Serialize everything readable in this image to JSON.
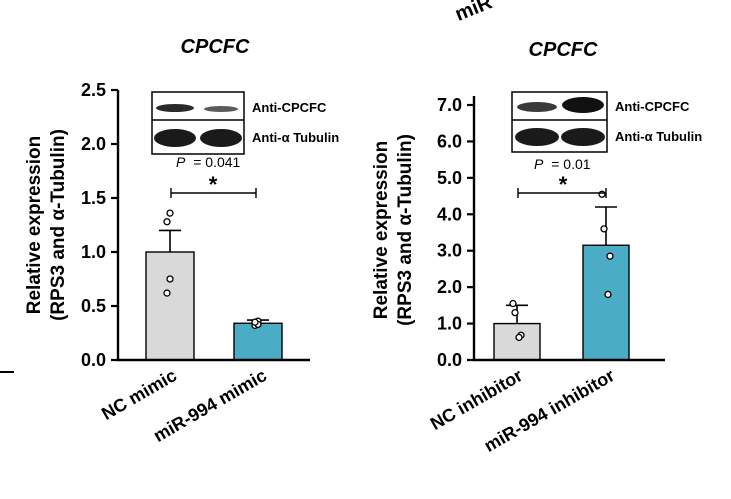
{
  "top_fragment": {
    "text": "miR"
  },
  "chart_data": [
    {
      "type": "bar",
      "title": "CPCFC",
      "ylabel_line1": "Relative expression",
      "ylabel_line2": "(RPS3 and α-Tubulin)",
      "ylim": [
        0,
        2.5
      ],
      "yticks": [
        "0.0",
        "0.5",
        "1.0",
        "1.5",
        "2.0",
        "2.5"
      ],
      "categories": [
        "NC mimic",
        "miR-994 mimic"
      ],
      "values": [
        1.0,
        0.34
      ],
      "errors": [
        0.2,
        0.03
      ],
      "points": [
        [
          1.36,
          1.28,
          0.75,
          0.62
        ],
        [
          0.36,
          0.32,
          0.33,
          0.35
        ]
      ],
      "bar_colors": [
        "#d9d9d9",
        "#4bacc6"
      ],
      "significance": {
        "p_prefix": "P",
        "p_value": "= 0.041",
        "stars": "*"
      },
      "blot_labels": [
        "Anti-CPCFC",
        "Anti-α Tubulin"
      ]
    },
    {
      "type": "bar",
      "title": "CPCFC",
      "ylabel_line1": "Relative expression",
      "ylabel_line2": "(RPS3 and α-Tubulin)",
      "ylim": [
        0,
        7.0
      ],
      "yticks": [
        "0.0",
        "1.0",
        "2.0",
        "3.0",
        "4.0",
        "5.0",
        "6.0",
        "7.0"
      ],
      "categories": [
        "NC inhibitor",
        "miR-994 inhibitor"
      ],
      "values": [
        1.0,
        3.15
      ],
      "errors": [
        0.5,
        1.05
      ],
      "points": [
        [
          1.55,
          1.3,
          0.68,
          0.62
        ],
        [
          4.55,
          3.6,
          2.85,
          1.8
        ]
      ],
      "bar_colors": [
        "#d9d9d9",
        "#4bacc6"
      ],
      "significance": {
        "p_prefix": "P",
        "p_value": "= 0.01",
        "stars": "*"
      },
      "blot_labels": [
        "Anti-CPCFC",
        "Anti-α Tubulin"
      ]
    }
  ]
}
